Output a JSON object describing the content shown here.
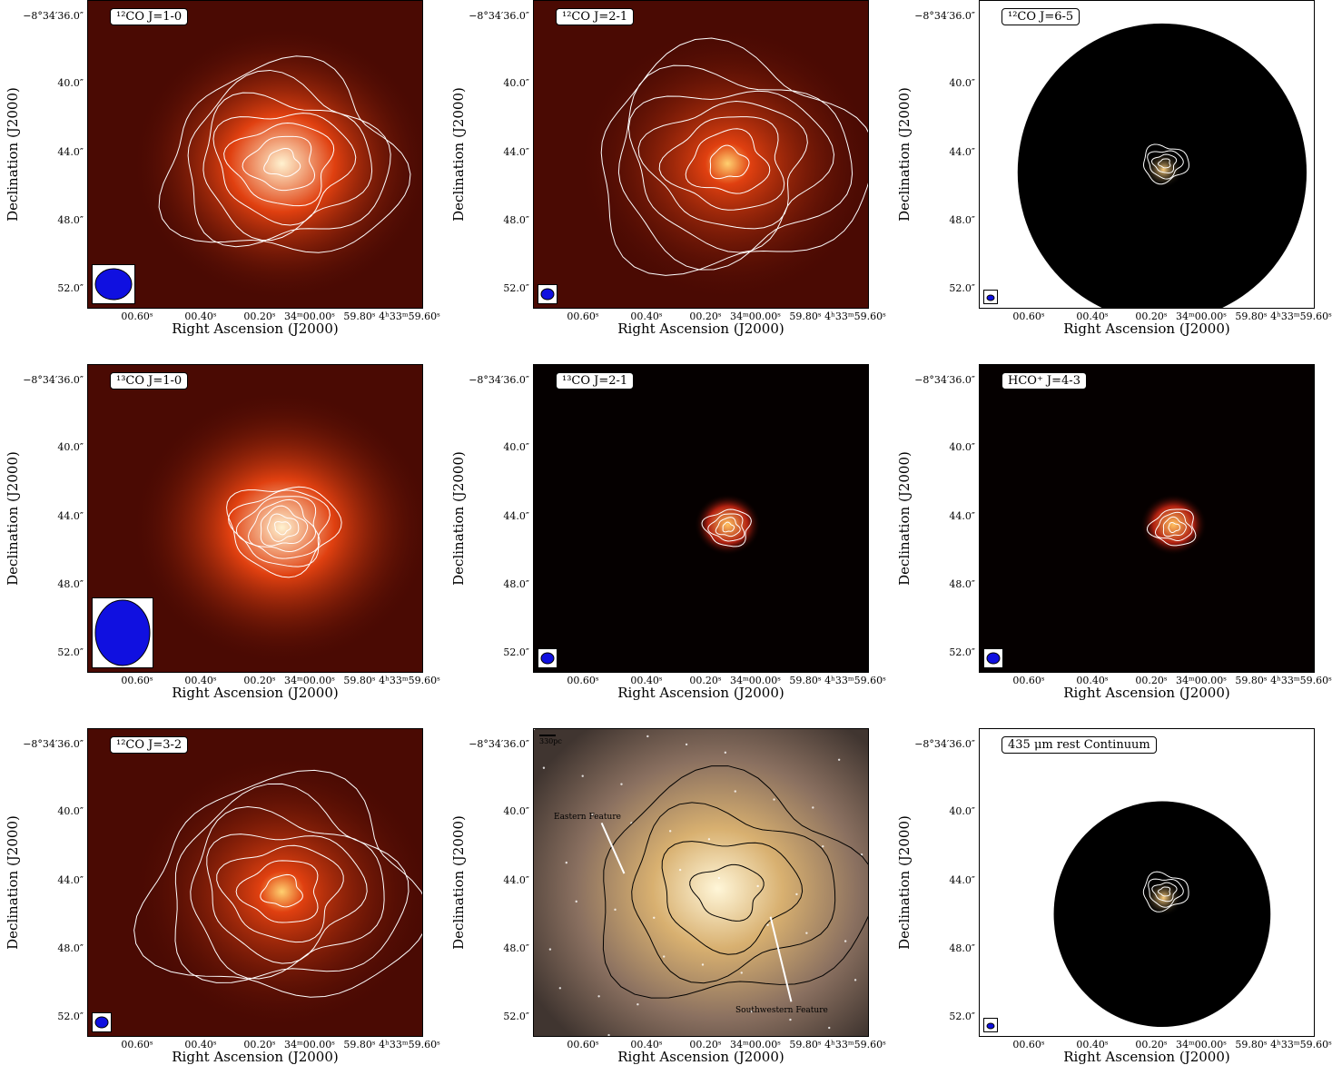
{
  "axis_common": {
    "xlabel": "Right Ascension (J2000)",
    "ylabel": "Declination (J2000)",
    "xticks": [
      "00.60ˢ",
      "00.40ˢ",
      "00.20ˢ",
      "34ᵐ00.00ˢ",
      "59.80ˢ",
      "4ʰ33ᵐ59.60ˢ"
    ],
    "yticks": [
      "−8°34′36.0″",
      "40.0″",
      "44.0″",
      "48.0″",
      "52.0″"
    ]
  },
  "panels": [
    {
      "id": "p1",
      "label": "¹²CO J=1-0",
      "bg": "red",
      "beam": "large"
    },
    {
      "id": "p2",
      "label": "¹²CO J=2-1",
      "bg": "red",
      "beam": "small"
    },
    {
      "id": "p3",
      "label": "¹²CO J=6-5",
      "bg": "circle",
      "beam": "tiny"
    },
    {
      "id": "p4",
      "label": "¹³CO J=1-0",
      "bg": "red",
      "beam": "xlarge"
    },
    {
      "id": "p5",
      "label": "¹³CO J=2-1",
      "bg": "dark",
      "beam": "small"
    },
    {
      "id": "p6",
      "label": "HCO⁺ J=4-3",
      "bg": "dark",
      "beam": "small"
    },
    {
      "id": "p7",
      "label": "¹²CO J=3-2",
      "bg": "red",
      "beam": "small"
    },
    {
      "id": "p8",
      "label": "",
      "bg": "optical",
      "beam": "none"
    },
    {
      "id": "p9",
      "label": "435 μm rest Continuum",
      "bg": "circle",
      "beam": "tiny"
    }
  ],
  "annotations": {
    "scale_label": "330pc",
    "eastern": "Eastern Feature",
    "southwestern": "Southwestern Feature"
  },
  "colors": {
    "beam": "#1010e0",
    "map_dark": "#000000",
    "map_red": "#5a0d05"
  }
}
